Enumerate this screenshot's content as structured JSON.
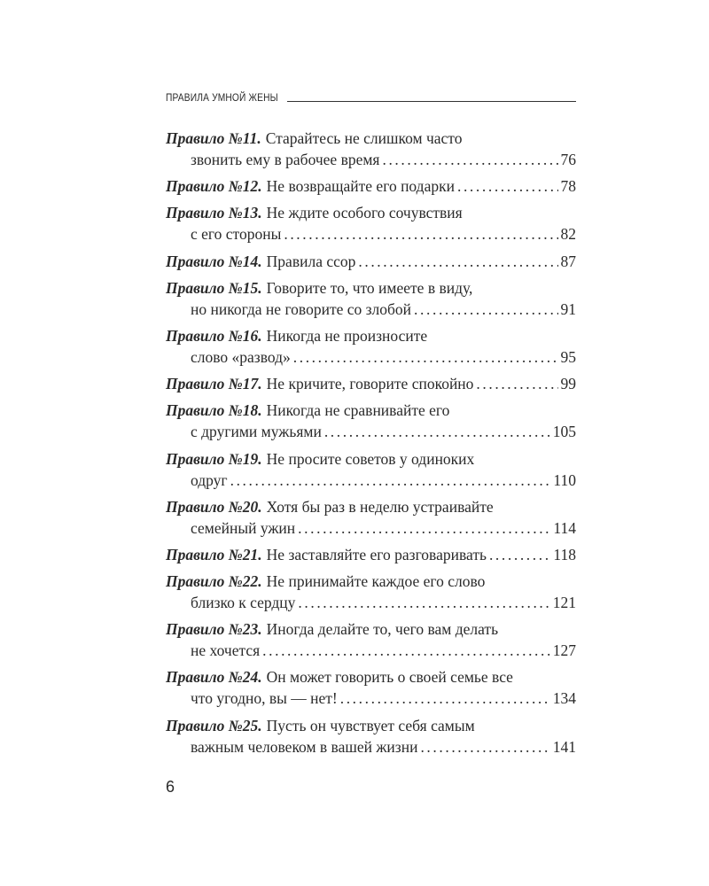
{
  "header": {
    "title": "ПРАВИЛА УМНОЙ ЖЕНЫ"
  },
  "toc": [
    {
      "label": "Правило №11.",
      "lines": [
        "Старайтесь не слишком часто",
        "звонить ему в рабочее время"
      ],
      "page": "76"
    },
    {
      "label": "Правило №12.",
      "lines": [
        "Не возвращайте его подарки"
      ],
      "page": "78"
    },
    {
      "label": "Правило №13.",
      "lines": [
        "Не ждите особого сочувствия",
        "с его стороны"
      ],
      "page": "82"
    },
    {
      "label": "Правило №14.",
      "lines": [
        "Правила ссор"
      ],
      "page": "87"
    },
    {
      "label": "Правило №15.",
      "lines": [
        "Говорите то, что имеете в виду,",
        "но никогда не говорите со злобой"
      ],
      "page": "91"
    },
    {
      "label": "Правило №16.",
      "lines": [
        "Никогда не произносите",
        "слово «развод»"
      ],
      "page": "95"
    },
    {
      "label": "Правило №17.",
      "lines": [
        "Не кричите, говорите спокойно"
      ],
      "page": "99"
    },
    {
      "label": "Правило №18.",
      "lines": [
        "Никогда не сравнивайте его",
        "с другими мужьями"
      ],
      "page": "105"
    },
    {
      "label": "Правило №19.",
      "lines": [
        "Не просите советов у одиноких",
        "одруг"
      ],
      "page": "110"
    },
    {
      "label": "Правило №20.",
      "lines": [
        "Хотя бы раз в неделю устраивайте",
        "семейный ужин"
      ],
      "page": "114"
    },
    {
      "label": "Правило №21.",
      "lines": [
        "Не заставляйте его разговаривать"
      ],
      "page": "118"
    },
    {
      "label": "Правило №22.",
      "lines": [
        "Не принимайте каждое его слово",
        "близко к сердцу"
      ],
      "page": "121"
    },
    {
      "label": "Правило №23.",
      "lines": [
        "Иногда делайте то, чего вам делать",
        "не хочется"
      ],
      "page": "127"
    },
    {
      "label": "Правило №24.",
      "lines": [
        "Он может говорить о своей семье все",
        "что угодно, вы — нет!"
      ],
      "page": "134"
    },
    {
      "label": "Правило №25.",
      "lines": [
        "Пусть он чувствует себя самым",
        "важным человеком в вашей жизни"
      ],
      "page": "141"
    }
  ],
  "page_number": "6"
}
